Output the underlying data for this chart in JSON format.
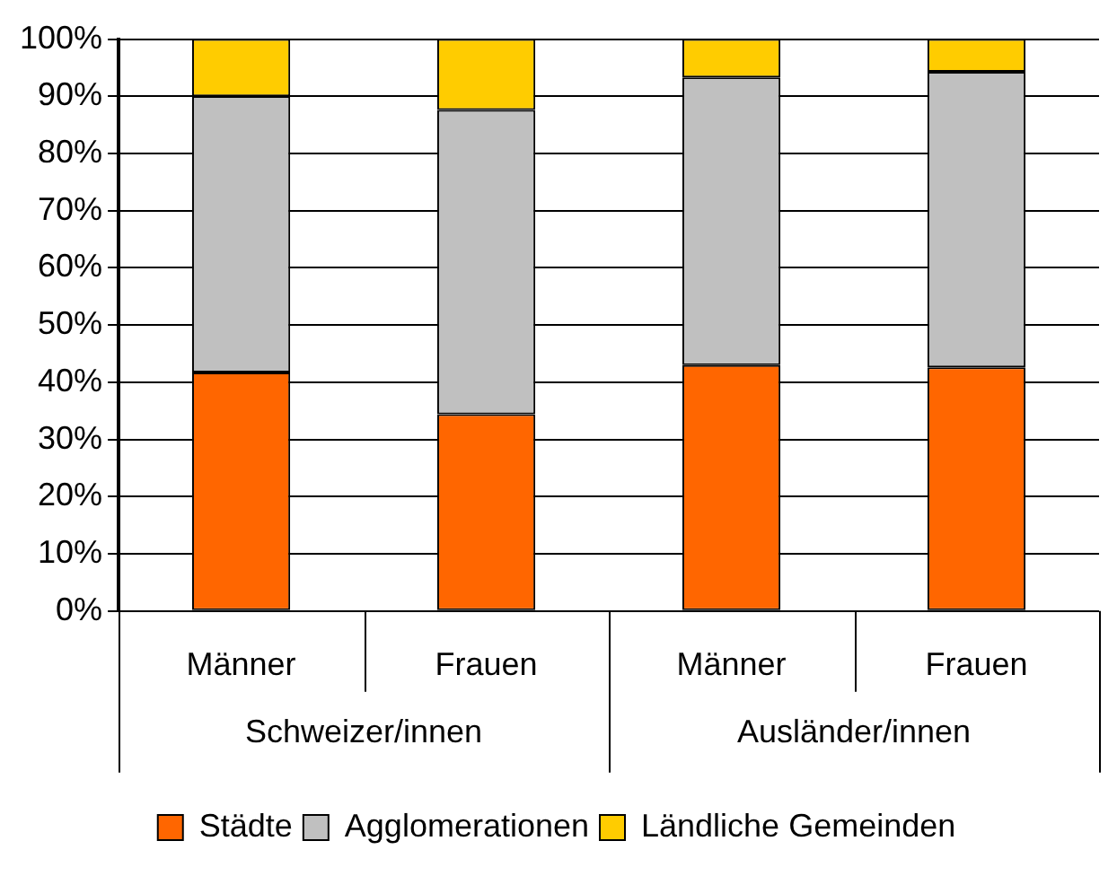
{
  "chart_data": {
    "type": "bar",
    "stacked": true,
    "categories": [
      "Männer",
      "Frauen",
      "Männer",
      "Frauen"
    ],
    "series": [
      {
        "name": "Städte",
        "color": "#ff6600",
        "values": [
          41.7,
          34.4,
          43.0,
          42.6
        ]
      },
      {
        "name": "Agglomerationen",
        "color": "#c0c0c0",
        "values": [
          48.3,
          53.2,
          50.3,
          51.7
        ]
      },
      {
        "name": "Ländliche Gemeinden",
        "color": "#ffcc00",
        "values": [
          10.0,
          12.4,
          6.7,
          5.7
        ]
      }
    ],
    "annotations": [
      "Schweizer/innen",
      "Ausländer/innen"
    ],
    "ylim": [
      0,
      100
    ],
    "yticks": [
      {
        "value": 0,
        "label": "0%"
      },
      {
        "value": 10,
        "label": "10%"
      },
      {
        "value": 20,
        "label": "20%"
      },
      {
        "value": 30,
        "label": "30%"
      },
      {
        "value": 40,
        "label": "40%"
      },
      {
        "value": 50,
        "label": "50%"
      },
      {
        "value": 60,
        "label": "60%"
      },
      {
        "value": 70,
        "label": "70%"
      },
      {
        "value": 80,
        "label": "80%"
      },
      {
        "value": 90,
        "label": "90%"
      },
      {
        "value": 100,
        "label": "100%"
      }
    ],
    "grid": "y",
    "legend": "bottom"
  }
}
